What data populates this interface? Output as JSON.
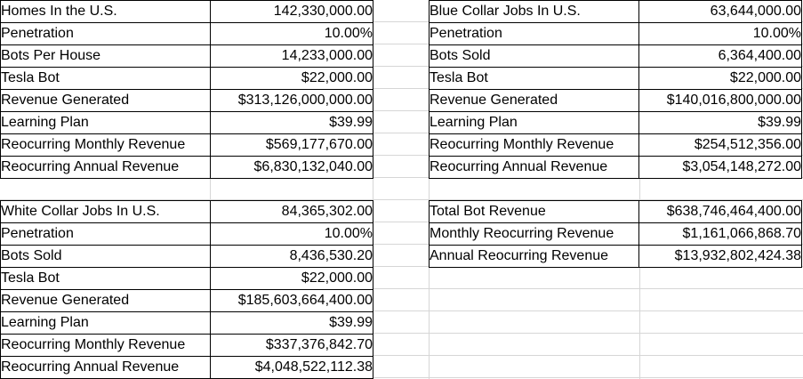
{
  "sheet": {
    "background": "#ffffff",
    "gridline_color": "#d6d6d6",
    "table_border_color": "#000000",
    "text_color": "#000000"
  },
  "tables": {
    "homes": {
      "rows": [
        {
          "label": "Homes In the U.S.",
          "value": "142,330,000.00"
        },
        {
          "label": "Penetration",
          "value": "10.00%"
        },
        {
          "label": "Bots Per House",
          "value": "14,233,000.00"
        },
        {
          "label": "Tesla Bot",
          "value": "$22,000.00"
        },
        {
          "label": "Revenue Generated",
          "value": "$313,126,000,000.00"
        },
        {
          "label": "Learning Plan",
          "value": "$39.99"
        },
        {
          "label": "Reocurring Monthly Revenue",
          "value": "$569,177,670.00"
        },
        {
          "label": "Reocurring Annual Revenue",
          "value": "$6,830,132,040.00"
        }
      ]
    },
    "blue_collar": {
      "rows": [
        {
          "label": "Blue Collar Jobs In U.S.",
          "value": "63,644,000.00"
        },
        {
          "label": "Penetration",
          "value": "10.00%"
        },
        {
          "label": "Bots Sold",
          "value": "6,364,400.00"
        },
        {
          "label": "Tesla Bot",
          "value": "$22,000.00"
        },
        {
          "label": "Revenue Generated",
          "value": "$140,016,800,000.00"
        },
        {
          "label": "Learning Plan",
          "value": "$39.99"
        },
        {
          "label": "Reocurring Monthly Revenue",
          "value": "$254,512,356.00"
        },
        {
          "label": "Reocurring Annual Revenue",
          "value": "$3,054,148,272.00"
        }
      ]
    },
    "white_collar": {
      "rows": [
        {
          "label": "White Collar Jobs In U.S.",
          "value": "84,365,302.00"
        },
        {
          "label": "Penetration",
          "value": "10.00%"
        },
        {
          "label": "Bots Sold",
          "value": "8,436,530.20"
        },
        {
          "label": "Tesla Bot",
          "value": "$22,000.00"
        },
        {
          "label": "Revenue Generated",
          "value": "$185,603,664,400.00"
        },
        {
          "label": "Learning Plan",
          "value": "$39.99"
        },
        {
          "label": "Reocurring Monthly Revenue",
          "value": "$337,376,842.70"
        },
        {
          "label": "Reocurring Annual Revenue",
          "value": "$4,048,522,112.38"
        }
      ]
    },
    "totals": {
      "rows": [
        {
          "label": "Total Bot Revenue",
          "value": "$638,746,464,400.00"
        },
        {
          "label": "Monthly Reocurring Revenue",
          "value": "$1,161,066,868.70"
        },
        {
          "label": "Annual Reocurring Revenue",
          "value": "$13,932,802,424.38"
        }
      ]
    }
  }
}
